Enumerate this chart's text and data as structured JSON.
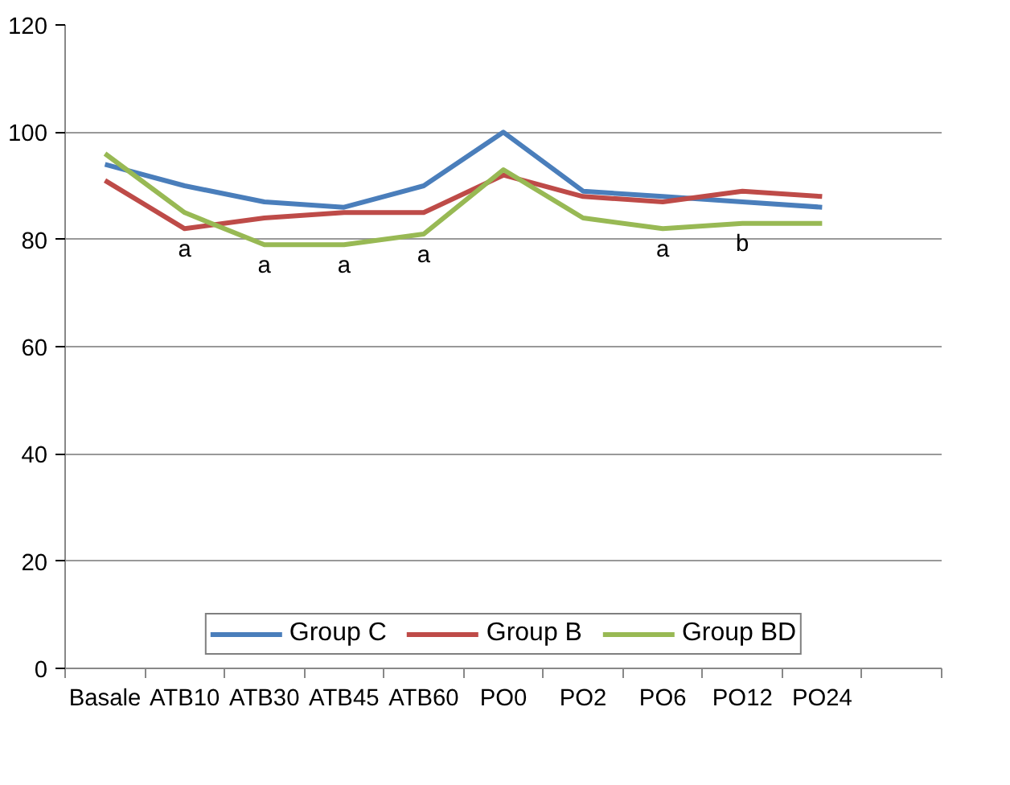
{
  "chart_data": {
    "type": "line",
    "categories": [
      "Basale",
      "ATB10",
      "ATB30",
      "ATB45",
      "ATB60",
      "PO0",
      "PO2",
      "PO6",
      "PO12",
      "PO24",
      null
    ],
    "series": [
      {
        "name": "Group C",
        "color": "#4a7ebb",
        "values": [
          94,
          90,
          87,
          86,
          90,
          100,
          89,
          88,
          87,
          86,
          null
        ]
      },
      {
        "name": "Group B",
        "color": "#be4b48",
        "values": [
          91,
          82,
          84,
          85,
          85,
          92,
          88,
          87,
          89,
          88,
          null
        ]
      },
      {
        "name": "Group BD",
        "color": "#98b954",
        "values": [
          96,
          85,
          79,
          79,
          81,
          93,
          84,
          82,
          83,
          83,
          null
        ]
      }
    ],
    "ylim": [
      0,
      120
    ],
    "yticks": [
      0,
      20,
      40,
      60,
      80,
      100,
      120
    ],
    "grid": "y",
    "legend": "bottom",
    "marker": "none",
    "line_style": "solid",
    "annotations": [
      "a",
      "a",
      "a",
      "a",
      "a",
      "b"
    ]
  }
}
